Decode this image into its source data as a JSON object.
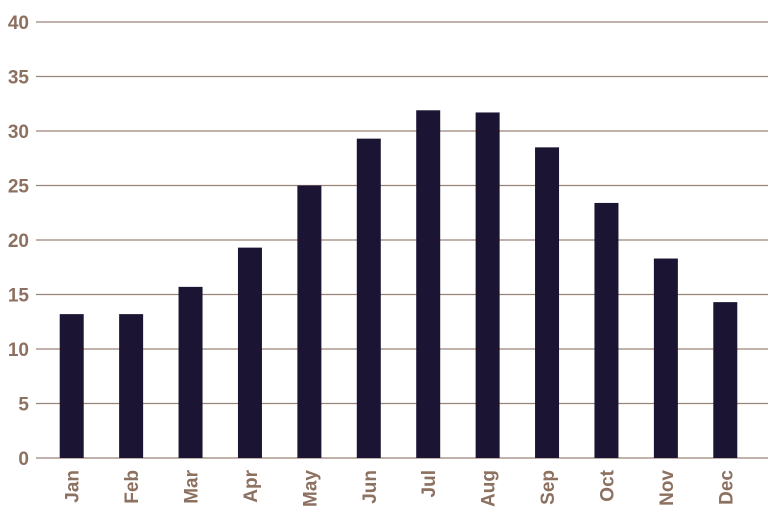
{
  "chart_data": {
    "type": "bar",
    "categories": [
      "Jan",
      "Feb",
      "Mar",
      "Apr",
      "May",
      "Jun",
      "Jul",
      "Aug",
      "Sep",
      "Oct",
      "Nov",
      "Dec"
    ],
    "values": [
      13.2,
      13.2,
      15.7,
      19.3,
      25.0,
      29.3,
      31.9,
      31.7,
      28.5,
      23.4,
      18.3,
      14.3
    ],
    "color": "#1b1533",
    "ylim": [
      0,
      40
    ],
    "yticks": [
      0,
      5,
      10,
      15,
      20,
      25,
      30,
      35,
      40
    ],
    "grid": true
  }
}
